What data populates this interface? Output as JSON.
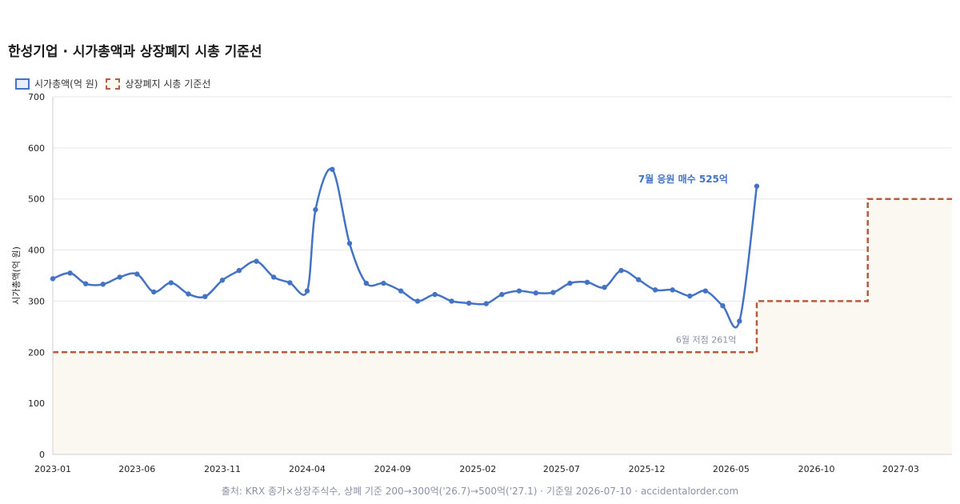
{
  "title": "한성기업 · 시가총액과 상장폐지 시총 기준선",
  "legend": {
    "market_cap": "시가총액(억 원)",
    "threshold": "상장폐지 시총 기준선"
  },
  "source_note": "출처: KRX 종가×상장주식수, 상폐 기준 200→300억('26.7)→500억('27.1) · 기준일 2026-07-10 · accidentalorder.com",
  "colors": {
    "series": "#4472c4",
    "threshold": "#b85a3c",
    "threshold_fill": "#fbf8f1",
    "grid": "#e6e6e6",
    "annotation_low": "#8a93a6"
  },
  "chart_data": {
    "type": "line",
    "ylabel": "시가총액(억 원)",
    "ylim": [
      0,
      700
    ],
    "yticks": [
      0,
      100,
      200,
      300,
      400,
      500,
      600,
      700
    ],
    "xlim": [
      "2023-01-01",
      "2027-06-01"
    ],
    "xticks": [
      "2023-01",
      "2023-06",
      "2023-11",
      "2024-04",
      "2024-09",
      "2025-02",
      "2025-07",
      "2025-12",
      "2026-05",
      "2026-10",
      "2027-03"
    ],
    "grid": true,
    "legend_position": "top-left",
    "series": [
      {
        "name": "시가총액(억 원)",
        "points": [
          [
            "2023-01-01",
            344
          ],
          [
            "2023-02-01",
            355
          ],
          [
            "2023-03-01",
            334
          ],
          [
            "2023-04-01",
            333
          ],
          [
            "2023-05-01",
            347
          ],
          [
            "2023-06-01",
            353
          ],
          [
            "2023-07-01",
            318
          ],
          [
            "2023-08-01",
            336
          ],
          [
            "2023-09-01",
            314
          ],
          [
            "2023-10-01",
            309
          ],
          [
            "2023-11-01",
            341
          ],
          [
            "2023-12-01",
            360
          ],
          [
            "2024-01-01",
            378
          ],
          [
            "2024-02-01",
            347
          ],
          [
            "2024-03-01",
            336
          ],
          [
            "2024-04-01",
            320
          ],
          [
            "2024-04-16",
            479
          ],
          [
            "2024-05-16",
            558
          ],
          [
            "2024-06-16",
            413
          ],
          [
            "2024-07-16",
            335
          ],
          [
            "2024-08-16",
            335
          ],
          [
            "2024-09-16",
            320
          ],
          [
            "2024-10-16",
            300
          ],
          [
            "2024-11-16",
            313
          ],
          [
            "2024-12-16",
            300
          ],
          [
            "2025-01-16",
            296
          ],
          [
            "2025-02-16",
            295
          ],
          [
            "2025-03-16",
            313
          ],
          [
            "2025-04-16",
            320
          ],
          [
            "2025-05-16",
            316
          ],
          [
            "2025-06-16",
            317
          ],
          [
            "2025-07-16",
            335
          ],
          [
            "2025-08-16",
            337
          ],
          [
            "2025-09-16",
            327
          ],
          [
            "2025-10-16",
            360
          ],
          [
            "2025-11-16",
            342
          ],
          [
            "2025-12-16",
            322
          ],
          [
            "2026-01-16",
            322
          ],
          [
            "2026-02-16",
            310
          ],
          [
            "2026-03-16",
            320
          ],
          [
            "2026-04-16",
            291
          ],
          [
            "2026-05-16",
            261
          ],
          [
            "2026-06-16",
            525
          ]
        ]
      }
    ],
    "threshold": {
      "name": "상장폐지 시총 기준선",
      "steps": [
        {
          "from": "2023-01-01",
          "to": "2026-06-16",
          "value": 200
        },
        {
          "from": "2026-06-16",
          "to": "2027-01-01",
          "value": 300
        },
        {
          "from": "2027-01-01",
          "to": "2027-06-01",
          "value": 500
        }
      ]
    },
    "annotations": [
      {
        "text": "7월 응원 매수 525억",
        "x": "2026-06-16",
        "y": 525,
        "style": "high"
      },
      {
        "text": "6월 저점 261억",
        "x": "2026-05-16",
        "y": 261,
        "style": "low"
      }
    ]
  }
}
